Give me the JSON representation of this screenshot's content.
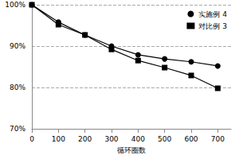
{
  "chart_data": {
    "type": "line",
    "x_label": "循环圈数",
    "x": [
      0,
      100,
      200,
      300,
      400,
      500,
      600,
      700
    ],
    "xlim": [
      0,
      750
    ],
    "xticks": [
      0,
      100,
      200,
      300,
      400,
      500,
      600,
      700
    ],
    "ylim": [
      70,
      100
    ],
    "yticks": [
      {
        "value": 70,
        "label": "70%"
      },
      {
        "value": 80,
        "label": "80%"
      },
      {
        "value": 90,
        "label": "90%"
      },
      {
        "value": 100,
        "label": "100%"
      }
    ],
    "grid": true,
    "legend": "upper right",
    "series": [
      {
        "name": "实施例 4",
        "color": "#000000",
        "marker": "circle",
        "line_style": "solid",
        "values": [
          100,
          95.8,
          92.7,
          90.0,
          87.9,
          86.9,
          86.2,
          85.2
        ]
      },
      {
        "name": "对比例 3",
        "color": "#000000",
        "marker": "square",
        "line_style": "solid",
        "values": [
          100,
          95.2,
          92.7,
          89.2,
          86.5,
          84.8,
          82.9,
          79.8
        ]
      }
    ]
  }
}
